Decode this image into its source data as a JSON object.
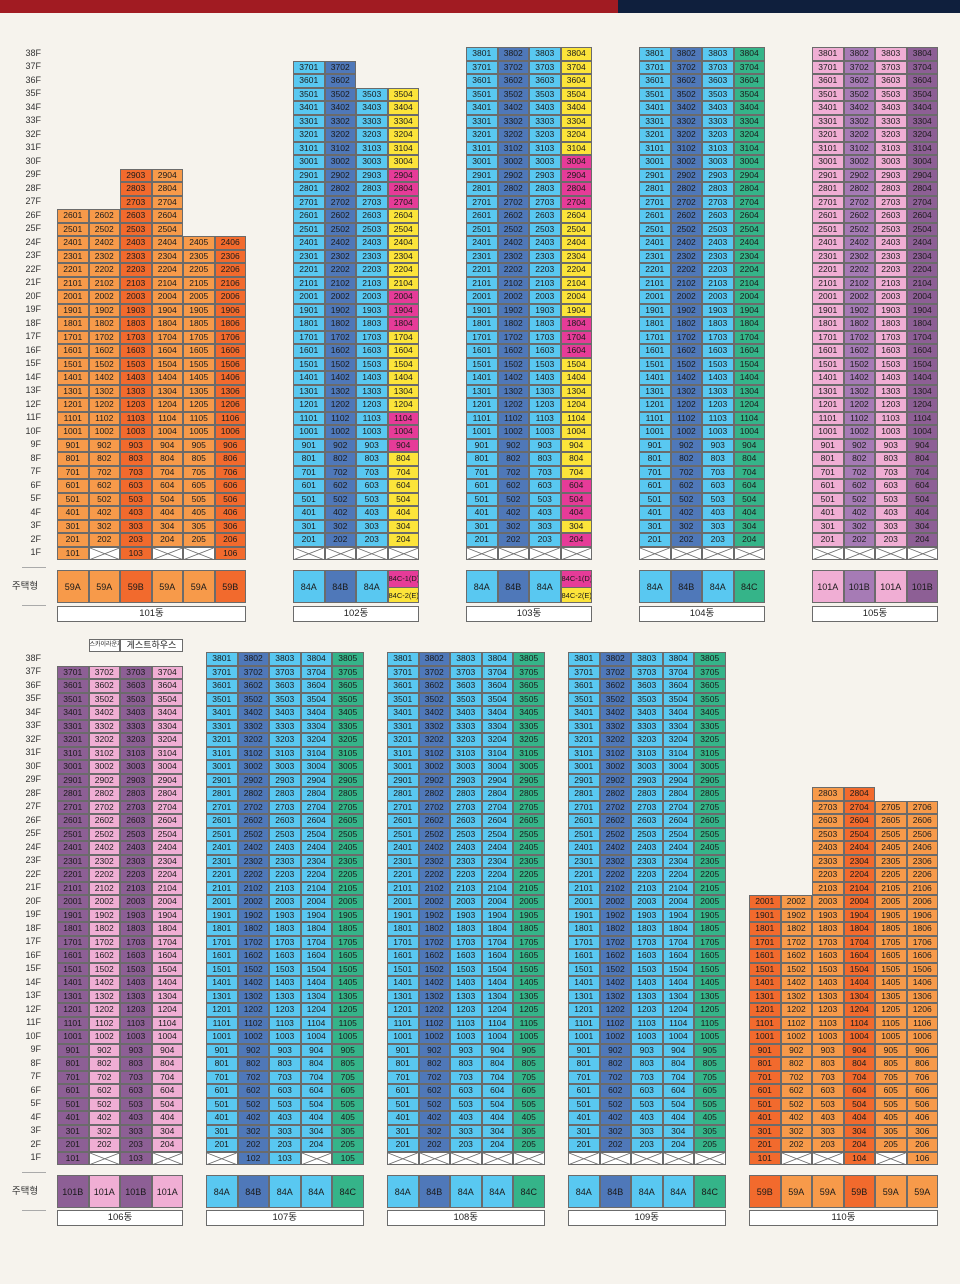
{
  "legend": {
    "type_label": "주택형"
  },
  "colors": {
    "orange": "#f79a4a",
    "deep_orange": "#f26a2d",
    "pink": "#f0aed4",
    "purple": "#8d5f95",
    "light_blue": "#59c8f1",
    "mid_blue": "#4f78b9",
    "green": "#35b489",
    "yellow": "#fce43a",
    "magenta": "#e63b98",
    "light_purple": "#a67bb5"
  },
  "floors": [
    "38F",
    "37F",
    "36F",
    "35F",
    "34F",
    "33F",
    "32F",
    "31F",
    "30F",
    "29F",
    "28F",
    "27F",
    "26F",
    "25F",
    "24F",
    "23F",
    "22F",
    "21F",
    "20F",
    "19F",
    "18F",
    "17F",
    "16F",
    "15F",
    "14F",
    "13F",
    "12F",
    "11F",
    "10F",
    "9F",
    "8F",
    "7F",
    "6F",
    "5F",
    "4F",
    "3F",
    "2F",
    "1F"
  ],
  "buildings": [
    {
      "name": "101동",
      "row": 0,
      "columns": [
        {
          "line": "01",
          "top": 26,
          "bottom": 1,
          "color": "orange",
          "empty_floors": [],
          "type": "59A"
        },
        {
          "line": "02",
          "top": 26,
          "bottom": 1,
          "color": "orange",
          "empty_floors": [
            1
          ],
          "type": "59A"
        },
        {
          "line": "03",
          "top": 29,
          "bottom": 1,
          "color": "deep_orange",
          "empty_floors": [],
          "type": "59B"
        },
        {
          "line": "04",
          "top": 29,
          "bottom": 1,
          "color": "orange",
          "empty_floors": [
            1
          ],
          "type": "59A"
        },
        {
          "line": "05",
          "top": 24,
          "bottom": 1,
          "color": "orange",
          "empty_floors": [
            1
          ],
          "type": "59A"
        },
        {
          "line": "06",
          "top": 24,
          "bottom": 1,
          "color": "deep_orange",
          "empty_floors": [],
          "type": "59B"
        }
      ]
    },
    {
      "name": "102동",
      "row": 0,
      "columns": [
        {
          "line": "01",
          "top": 37,
          "bottom": 1,
          "color": "light_blue",
          "empty_floors": [
            1
          ],
          "type": "84A"
        },
        {
          "line": "02",
          "top": 37,
          "bottom": 1,
          "color": "mid_blue",
          "empty_floors": [
            1
          ],
          "type": "84B"
        },
        {
          "line": "03",
          "top": 35,
          "bottom": 1,
          "color": "light_blue",
          "empty_floors": [
            1
          ],
          "type": "84A"
        },
        {
          "line": "04",
          "top": 35,
          "bottom": 1,
          "color": "yellow",
          "empty_floors": [
            1
          ],
          "type": "84C-1(D)",
          "type2": "84C-2(E)",
          "overrides": {
            "magenta": [
              29,
              28,
              27,
              20,
              19,
              18,
              11,
              10,
              9
            ]
          }
        }
      ]
    },
    {
      "name": "103동",
      "row": 0,
      "columns": [
        {
          "line": "01",
          "top": 38,
          "bottom": 1,
          "color": "light_blue",
          "empty_floors": [
            1
          ],
          "type": "84A"
        },
        {
          "line": "02",
          "top": 38,
          "bottom": 1,
          "color": "mid_blue",
          "empty_floors": [
            1
          ],
          "type": "84B"
        },
        {
          "line": "03",
          "top": 38,
          "bottom": 1,
          "color": "light_blue",
          "empty_floors": [
            1
          ],
          "type": "84A"
        },
        {
          "line": "04",
          "top": 38,
          "bottom": 1,
          "color": "yellow",
          "empty_floors": [
            1
          ],
          "type": "84C-1(D)",
          "type2": "84C-2(E)",
          "overrides": {
            "magenta": [
              30,
              29,
              28,
              27,
              18,
              17,
              16,
              6,
              5,
              4,
              2
            ]
          }
        }
      ]
    },
    {
      "name": "104동",
      "row": 0,
      "columns": [
        {
          "line": "01",
          "top": 38,
          "bottom": 1,
          "color": "light_blue",
          "empty_floors": [
            1
          ],
          "type": "84A"
        },
        {
          "line": "02",
          "top": 38,
          "bottom": 1,
          "color": "mid_blue",
          "empty_floors": [
            1
          ],
          "type": "84B"
        },
        {
          "line": "03",
          "top": 38,
          "bottom": 1,
          "color": "light_blue",
          "empty_floors": [
            1
          ],
          "type": "84A"
        },
        {
          "line": "04",
          "top": 38,
          "bottom": 1,
          "color": "green",
          "empty_floors": [
            1
          ],
          "type": "84C"
        }
      ]
    },
    {
      "name": "105동",
      "row": 0,
      "columns": [
        {
          "line": "01",
          "top": 38,
          "bottom": 1,
          "color": "pink",
          "empty_floors": [
            1
          ],
          "type": "101A"
        },
        {
          "line": "02",
          "top": 38,
          "bottom": 1,
          "color": "light_purple",
          "empty_floors": [
            1
          ],
          "type": "101B"
        },
        {
          "line": "03",
          "top": 38,
          "bottom": 1,
          "color": "pink",
          "empty_floors": [
            1
          ],
          "type": "101A"
        },
        {
          "line": "04",
          "top": 38,
          "bottom": 1,
          "color": "purple",
          "empty_floors": [
            1
          ],
          "type": "101B"
        }
      ]
    },
    {
      "name": "106동",
      "row": 1,
      "notes": [
        "스카이라운지",
        "게스트하우스"
      ],
      "columns": [
        {
          "line": "01",
          "top": 37,
          "bottom": 1,
          "color": "purple",
          "empty_floors": [],
          "type": "101B"
        },
        {
          "line": "02",
          "top": 37,
          "bottom": 1,
          "color": "pink",
          "empty_floors": [
            1
          ],
          "type": "101A"
        },
        {
          "line": "03",
          "top": 37,
          "bottom": 1,
          "color": "purple",
          "empty_floors": [],
          "type": "101B"
        },
        {
          "line": "04",
          "top": 37,
          "bottom": 1,
          "color": "pink",
          "empty_floors": [
            1
          ],
          "type": "101A"
        }
      ]
    },
    {
      "name": "107동",
      "row": 1,
      "columns": [
        {
          "line": "01",
          "top": 38,
          "bottom": 1,
          "color": "light_blue",
          "empty_floors": [
            1
          ],
          "type": "84A"
        },
        {
          "line": "02",
          "top": 38,
          "bottom": 1,
          "color": "mid_blue",
          "empty_floors": [],
          "type": "84B"
        },
        {
          "line": "03",
          "top": 38,
          "bottom": 1,
          "color": "light_blue",
          "empty_floors": [],
          "type": "84A"
        },
        {
          "line": "04",
          "top": 38,
          "bottom": 1,
          "color": "light_blue",
          "empty_floors": [
            1
          ],
          "type": "84A"
        },
        {
          "line": "05",
          "top": 38,
          "bottom": 1,
          "color": "green",
          "empty_floors": [],
          "type": "84C"
        }
      ]
    },
    {
      "name": "108동",
      "row": 1,
      "columns": [
        {
          "line": "01",
          "top": 38,
          "bottom": 1,
          "color": "light_blue",
          "empty_floors": [
            1
          ],
          "type": "84A"
        },
        {
          "line": "02",
          "top": 38,
          "bottom": 1,
          "color": "mid_blue",
          "empty_floors": [
            1
          ],
          "type": "84B"
        },
        {
          "line": "03",
          "top": 38,
          "bottom": 1,
          "color": "light_blue",
          "empty_floors": [
            1
          ],
          "type": "84A"
        },
        {
          "line": "04",
          "top": 38,
          "bottom": 1,
          "color": "light_blue",
          "empty_floors": [
            1
          ],
          "type": "84A"
        },
        {
          "line": "05",
          "top": 38,
          "bottom": 1,
          "color": "green",
          "empty_floors": [
            1
          ],
          "type": "84C"
        }
      ]
    },
    {
      "name": "109동",
      "row": 1,
      "columns": [
        {
          "line": "01",
          "top": 38,
          "bottom": 1,
          "color": "light_blue",
          "empty_floors": [
            1
          ],
          "type": "84A"
        },
        {
          "line": "02",
          "top": 38,
          "bottom": 1,
          "color": "mid_blue",
          "empty_floors": [
            1
          ],
          "type": "84B"
        },
        {
          "line": "03",
          "top": 38,
          "bottom": 1,
          "color": "light_blue",
          "empty_floors": [
            1
          ],
          "type": "84A"
        },
        {
          "line": "04",
          "top": 38,
          "bottom": 1,
          "color": "light_blue",
          "empty_floors": [
            1
          ],
          "type": "84A"
        },
        {
          "line": "05",
          "top": 38,
          "bottom": 1,
          "color": "green",
          "empty_floors": [
            1
          ],
          "type": "84C"
        }
      ]
    },
    {
      "name": "110동",
      "row": 1,
      "columns": [
        {
          "line": "01",
          "top": 20,
          "bottom": 1,
          "color": "deep_orange",
          "empty_floors": [],
          "type": "59B"
        },
        {
          "line": "02",
          "top": 20,
          "bottom": 1,
          "color": "orange",
          "empty_floors": [
            1
          ],
          "type": "59A"
        },
        {
          "line": "03",
          "top": 28,
          "bottom": 1,
          "color": "orange",
          "empty_floors": [
            1
          ],
          "type": "59A"
        },
        {
          "line": "04",
          "top": 28,
          "bottom": 1,
          "color": "deep_orange",
          "empty_floors": [],
          "type": "59B"
        },
        {
          "line": "05",
          "top": 27,
          "bottom": 1,
          "color": "orange",
          "empty_floors": [
            1
          ],
          "type": "59A"
        },
        {
          "line": "06",
          "top": 27,
          "bottom": 1,
          "color": "orange",
          "empty_floors": [],
          "type": "59A"
        }
      ]
    }
  ]
}
